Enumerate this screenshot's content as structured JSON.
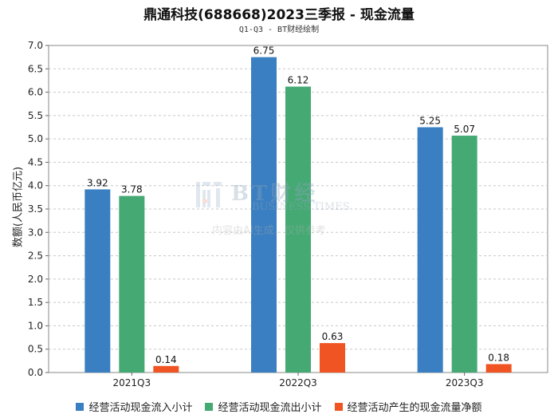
{
  "chart_data": {
    "type": "bar",
    "title": "鼎通科技(688668)2023三季报 - 现金流量",
    "subtitle": "Q1-Q3 - BT财经绘制",
    "xlabel": "",
    "ylabel": "数额(人民币亿元)",
    "ylim": [
      0,
      7.0
    ],
    "yticks": [
      "0.0",
      "0.5",
      "1.0",
      "1.5",
      "2.0",
      "2.5",
      "3.0",
      "3.5",
      "4.0",
      "4.5",
      "5.0",
      "5.5",
      "6.0",
      "6.5",
      "7.0"
    ],
    "grid": true,
    "legend_position": "bottom",
    "categories": [
      "2021Q3",
      "2022Q3",
      "2023Q3"
    ],
    "series": [
      {
        "name": "经营活动现金流入小计",
        "color": "#3a7fc1",
        "values": [
          3.92,
          6.75,
          5.25
        ],
        "labels": [
          "3.92",
          "6.75",
          "5.25"
        ]
      },
      {
        "name": "经营活动现金流出小计",
        "color": "#45a974",
        "values": [
          3.78,
          6.12,
          5.07
        ],
        "labels": [
          "3.78",
          "6.12",
          "5.07"
        ]
      },
      {
        "name": "经营活动产生的现金流量净额",
        "color": "#f05423",
        "values": [
          0.14,
          0.63,
          0.18
        ],
        "labels": [
          "0.14",
          "0.63",
          "0.18"
        ]
      }
    ]
  },
  "watermark": {
    "brand": "BT财经",
    "sub": "BUSINESS TIMES",
    "note": "内容由AI生成，仅供参考"
  }
}
